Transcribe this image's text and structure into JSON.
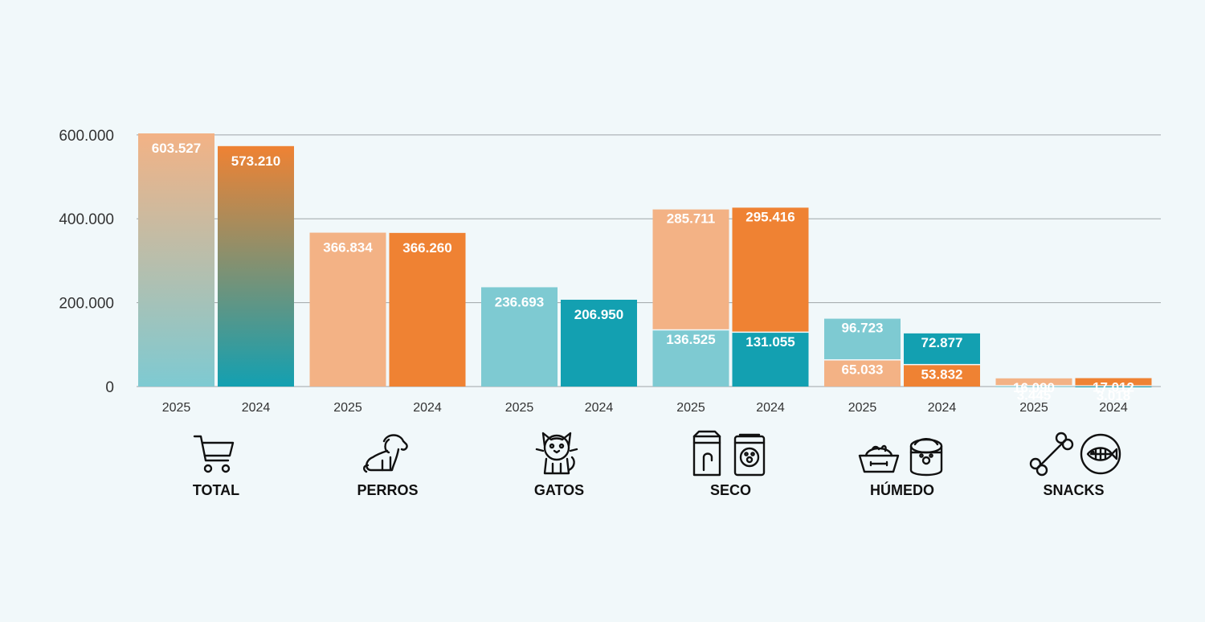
{
  "colors": {
    "light_orange": "#f3b285",
    "orange": "#ef8233",
    "light_teal": "#7ecad2",
    "teal": "#13a0b1",
    "grid": "#9fa5a8",
    "background": "#f1f8fa"
  },
  "chart_data": {
    "type": "bar",
    "title": "",
    "xlabel": "",
    "ylabel": "",
    "ylim": [
      0,
      615000
    ],
    "yticks": [
      "0",
      "200.000",
      "400.000",
      "600.000"
    ],
    "ytick_values": [
      0,
      200000,
      400000,
      600000
    ],
    "grid": true,
    "groups": [
      {
        "name": "TOTAL",
        "icons": [
          "shopping-cart-icon"
        ],
        "bars": [
          {
            "year": "2025",
            "total": 603527,
            "label": "603.527",
            "fill": "gradient-light"
          },
          {
            "year": "2024",
            "total": 573210,
            "label": "573.210",
            "fill": "gradient-dark"
          }
        ]
      },
      {
        "name": "PERROS",
        "icons": [
          "dog-icon"
        ],
        "bars": [
          {
            "year": "2025",
            "total": 366834,
            "label": "366.834",
            "fill": "light_orange"
          },
          {
            "year": "2024",
            "total": 366260,
            "label": "366.260",
            "fill": "orange"
          }
        ]
      },
      {
        "name": "GATOS",
        "icons": [
          "cat-icon"
        ],
        "bars": [
          {
            "year": "2025",
            "total": 236693,
            "label": "236.693",
            "fill": "light_teal"
          },
          {
            "year": "2024",
            "total": 206950,
            "label": "206.950",
            "fill": "teal"
          }
        ]
      },
      {
        "name": "SECO",
        "icons": [
          "dry-food-bag-icon",
          "pet-food-bag-icon"
        ],
        "bars": [
          {
            "year": "2025",
            "segments": [
              {
                "value": 136525,
                "label": "136.525",
                "fill": "light_teal"
              },
              {
                "value": 285711,
                "label": "285.711",
                "fill": "light_orange"
              }
            ]
          },
          {
            "year": "2024",
            "segments": [
              {
                "value": 131055,
                "label": "131.055",
                "fill": "teal"
              },
              {
                "value": 295416,
                "label": "295.416",
                "fill": "orange"
              }
            ]
          }
        ]
      },
      {
        "name": "HÚMEDO",
        "icons": [
          "food-bowl-icon",
          "wet-food-can-icon"
        ],
        "bars": [
          {
            "year": "2025",
            "segments": [
              {
                "value": 65033,
                "label": "65.033",
                "fill": "light_orange"
              },
              {
                "value": 96723,
                "label": "96.723",
                "fill": "light_teal"
              }
            ]
          },
          {
            "year": "2024",
            "segments": [
              {
                "value": 53832,
                "label": "53.832",
                "fill": "orange"
              },
              {
                "value": 72877,
                "label": "72.877",
                "fill": "teal"
              }
            ]
          }
        ]
      },
      {
        "name": "SNACKS",
        "icons": [
          "bone-icon",
          "fish-icon"
        ],
        "bars": [
          {
            "year": "2025",
            "segments": [
              {
                "value": 3445,
                "label": "3.445",
                "fill": "light_teal"
              },
              {
                "value": 16090,
                "label": "16.090",
                "fill": "light_orange"
              }
            ]
          },
          {
            "year": "2024",
            "segments": [
              {
                "value": 3018,
                "label": "3.018",
                "fill": "teal"
              },
              {
                "value": 17012,
                "label": "17.012",
                "fill": "orange"
              }
            ]
          }
        ]
      }
    ]
  }
}
